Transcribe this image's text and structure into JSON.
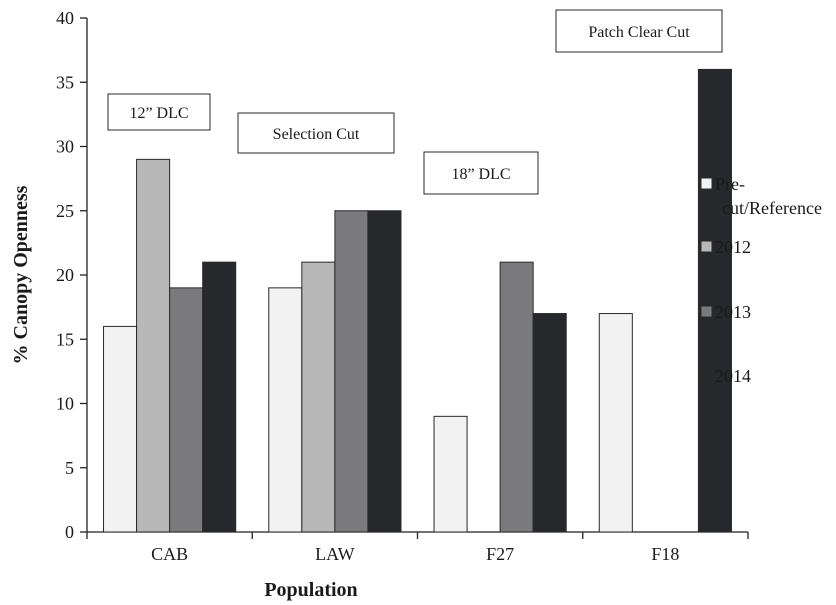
{
  "chart_data": {
    "type": "bar",
    "title": "",
    "xlabel": "Population",
    "ylabel": "% Canopy Openness",
    "ylim": [
      0,
      40
    ],
    "yticks": [
      "0",
      "5",
      "10",
      "15",
      "20",
      "25",
      "30",
      "35",
      "40"
    ],
    "categories": [
      "CAB",
      "LAW",
      "F27",
      "F18"
    ],
    "series": [
      {
        "name": "Pre-cut/Reference",
        "legend_lines": [
          "Pre-",
          "cut/Reference"
        ],
        "color": "#f2f2f2",
        "values": [
          16,
          19,
          9,
          17
        ]
      },
      {
        "name": "2012",
        "legend_lines": [
          "2012"
        ],
        "color": "#b8b8b8",
        "values": [
          29,
          21,
          null,
          null
        ]
      },
      {
        "name": "2013",
        "legend_lines": [
          "2013"
        ],
        "color": "#7a7a7c",
        "values": [
          19,
          25,
          21,
          null
        ]
      },
      {
        "name": "2014",
        "legend_lines": [
          "2014"
        ],
        "color": "#27282c",
        "values": [
          21,
          25,
          17,
          36
        ]
      }
    ],
    "legend_position": "right",
    "grid": false,
    "annotations": [
      "12” DLC",
      "Selection Cut",
      "18” DLC",
      "Patch Clear Cut"
    ]
  }
}
